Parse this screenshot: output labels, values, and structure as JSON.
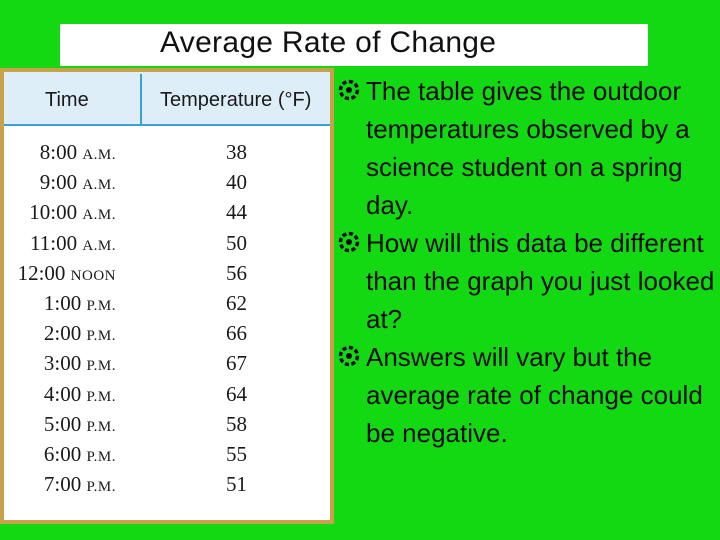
{
  "slide": {
    "title": "Average Rate of Change"
  },
  "table": {
    "headers": {
      "time": "Time",
      "temperature": "Temperature (°F)"
    },
    "rows": [
      {
        "time": "8:00",
        "period": "A.M.",
        "temp": "38"
      },
      {
        "time": "9:00",
        "period": "A.M.",
        "temp": "40"
      },
      {
        "time": "10:00",
        "period": "A.M.",
        "temp": "44"
      },
      {
        "time": "11:00",
        "period": "A.M.",
        "temp": "50"
      },
      {
        "time": "12:00",
        "period": "NOON",
        "temp": "56"
      },
      {
        "time": "1:00",
        "period": "P.M.",
        "temp": "62"
      },
      {
        "time": "2:00",
        "period": "P.M.",
        "temp": "66"
      },
      {
        "time": "3:00",
        "period": "P.M.",
        "temp": "67"
      },
      {
        "time": "4:00",
        "period": "P.M.",
        "temp": "64"
      },
      {
        "time": "5:00",
        "period": "P.M.",
        "temp": "58"
      },
      {
        "time": "6:00",
        "period": "P.M.",
        "temp": "55"
      },
      {
        "time": "7:00",
        "period": "P.M.",
        "temp": "51"
      }
    ]
  },
  "bullets": [
    "The table gives the outdoor temperatures observed by a science student on a spring day.",
    "How will this data be different than the graph you just looked at?",
    "Answers will vary but the average rate of change could be negative."
  ],
  "bullet_icon": "ring-bullet-icon",
  "colors": {
    "background": "#13d913",
    "frame": "#c8a24a",
    "header_fill": "#ddeef8",
    "header_rule": "#3aa0d8"
  }
}
